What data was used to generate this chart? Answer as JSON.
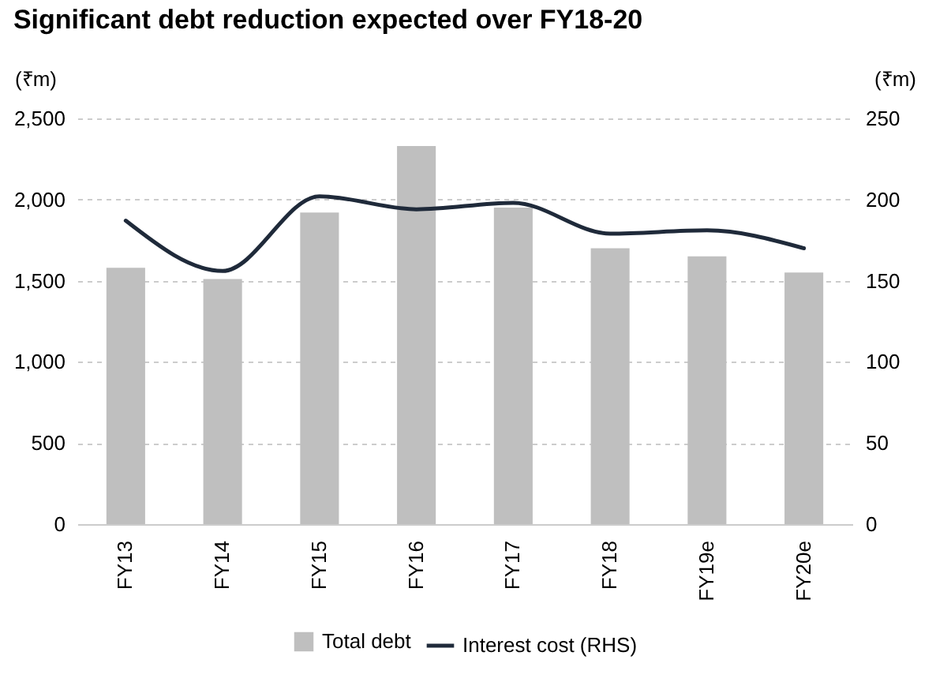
{
  "chart_data": {
    "type": "bar",
    "title": "Significant debt reduction expected over FY18-20",
    "ylabel": "(₹m)",
    "y2label": "(₹m)",
    "categories": [
      "FY13",
      "FY14",
      "FY15",
      "FY16",
      "FY17",
      "FY18",
      "FY19e",
      "FY20e"
    ],
    "series": [
      {
        "name": "Total debt",
        "color": "#bfbfbf",
        "values": [
          1580,
          1510,
          1920,
          2330,
          1950,
          1700,
          1650,
          1550
        ]
      },
      {
        "name": "Interest cost (RHS)",
        "type": "line",
        "axis": "y2",
        "color": "#1f2a3a",
        "values": [
          187,
          156,
          202,
          194,
          198,
          179,
          181,
          170
        ]
      }
    ],
    "ylim": [
      0,
      2500
    ],
    "yticks": [
      {
        "value": 0,
        "label": "0"
      },
      {
        "value": 500,
        "label": "500"
      },
      {
        "value": 1000,
        "label": "1,000"
      },
      {
        "value": 1500,
        "label": "1,500"
      },
      {
        "value": 2000,
        "label": "2,000"
      },
      {
        "value": 2500,
        "label": "2,500"
      }
    ],
    "y2lim": [
      0,
      250
    ],
    "y2ticks": [
      0,
      50,
      100,
      150,
      200,
      250
    ],
    "grid": "y",
    "legend": "bottom",
    "marker": "none",
    "line_style": "solid"
  }
}
